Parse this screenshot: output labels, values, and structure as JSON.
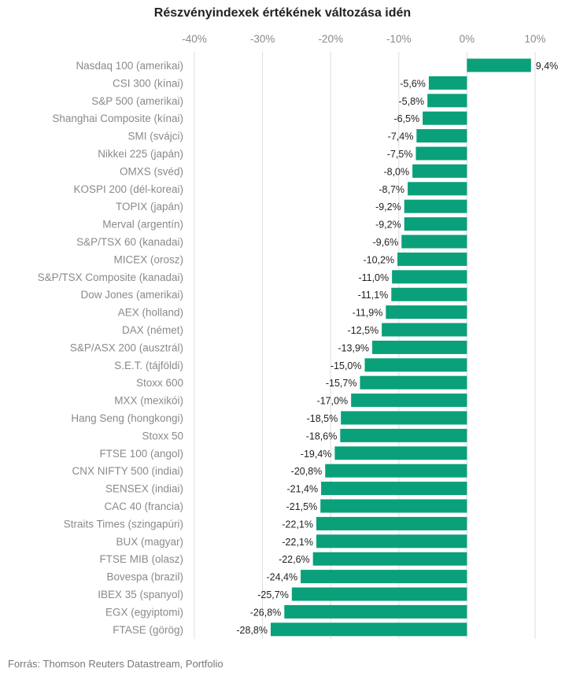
{
  "chart_data": {
    "type": "bar",
    "orientation": "horizontal",
    "title": "Részvényindexek értékének változása idén",
    "xlabel": "",
    "ylabel": "",
    "xlim": [
      -40,
      10
    ],
    "x_ticks": [
      -40,
      -30,
      -20,
      -10,
      0,
      10
    ],
    "x_tick_labels": [
      "-40%",
      "-30%",
      "-20%",
      "-10%",
      "0%",
      "10%"
    ],
    "grid": true,
    "bar_color": "#0aa07a",
    "categories": [
      "Nasdaq 100 (amerikai)",
      "CSI 300 (kínai)",
      "S&P 500 (amerikai)",
      "Shanghai Composite (kínai)",
      "SMI (svájci)",
      "Nikkei 225 (japán)",
      "OMXS (svéd)",
      "KOSPI 200 (dél-koreai)",
      "TOPIX (japán)",
      "Merval (argentín)",
      "S&P/TSX 60 (kanadai)",
      "MICEX (orosz)",
      "S&P/TSX Composite (kanadai)",
      "Dow Jones (amerikai)",
      "AEX (holland)",
      "DAX (német)",
      "S&P/ASX 200 (ausztrál)",
      "S.E.T. (tájföldi)",
      "Stoxx 600",
      "MXX (mexikói)",
      "Hang Seng (hongkongi)",
      "Stoxx 50",
      "FTSE 100 (angol)",
      "CNX NIFTY 500 (indiai)",
      "SENSEX (indiai)",
      "CAC 40 (francia)",
      "Straits Times (szingapúri)",
      "BUX (magyar)",
      "FTSE MIB (olasz)",
      "Bovespa (brazil)",
      "IBEX 35 (spanyol)",
      "EGX (egyiptomi)",
      "FTASE (görög)"
    ],
    "values": [
      9.4,
      -5.6,
      -5.8,
      -6.5,
      -7.4,
      -7.5,
      -8.0,
      -8.7,
      -9.2,
      -9.2,
      -9.6,
      -10.2,
      -11.0,
      -11.1,
      -11.9,
      -12.5,
      -13.9,
      -15.0,
      -15.7,
      -17.0,
      -18.5,
      -18.6,
      -19.4,
      -20.8,
      -21.4,
      -21.5,
      -22.1,
      -22.1,
      -22.6,
      -24.4,
      -25.7,
      -26.8,
      -28.8
    ],
    "value_labels": [
      "9,4%",
      "-5,6%",
      "-5,8%",
      "-6,5%",
      "-7,4%",
      "-7,5%",
      "-8,0%",
      "-8,7%",
      "-9,2%",
      "-9,2%",
      "-9,6%",
      "-10,2%",
      "-11,0%",
      "-11,1%",
      "-11,9%",
      "-12,5%",
      "-13,9%",
      "-15,0%",
      "-15,7%",
      "-17,0%",
      "-18,5%",
      "-18,6%",
      "-19,4%",
      "-20,8%",
      "-21,4%",
      "-21,5%",
      "-22,1%",
      "-22,1%",
      "-22,6%",
      "-24,4%",
      "-25,7%",
      "-26,8%",
      "-28,8%"
    ]
  },
  "source_note": "Forrás: Thomson Reuters Datastream, Portfolio"
}
